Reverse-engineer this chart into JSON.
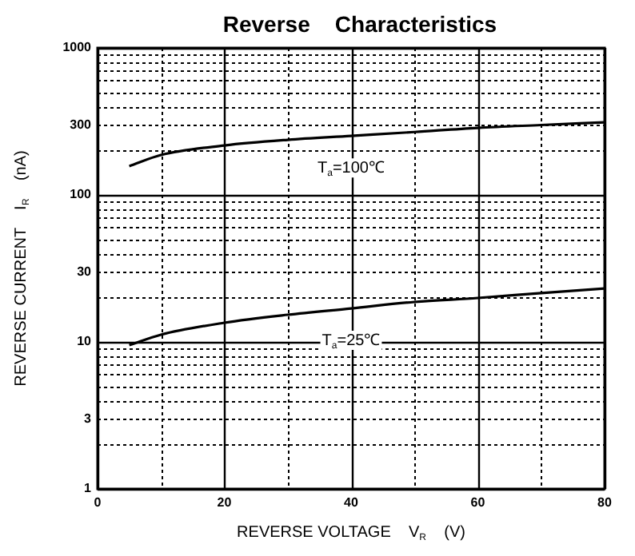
{
  "chart_data": {
    "type": "line",
    "title": "Reverse    Characteristics",
    "xlabel": "REVERSE VOLTAGE    V$_{R}$    (V)",
    "ylabel": "REVERSE CURRENT    I$_{R}$    (nA)",
    "x": [
      5,
      10,
      20,
      30,
      40,
      50,
      60,
      70,
      80
    ],
    "series": [
      {
        "name": "T$_{a}$=100℃",
        "color": "#000000",
        "values": [
          157,
          187,
          217,
          237,
          252,
          268,
          286,
          299,
          312
        ]
      },
      {
        "name": "T$_{a}$=25℃",
        "color": "#000000",
        "values": [
          9.5,
          11.2,
          13.5,
          15.3,
          16.9,
          18.7,
          19.9,
          21.5,
          23.1
        ]
      }
    ],
    "log": "y",
    "xlim": [
      0,
      80
    ],
    "ylim": [
      1,
      1000
    ],
    "xticks": [
      0,
      {
        "value": 10,
        "label": null
      },
      20,
      {
        "value": 30,
        "label": null
      },
      40,
      {
        "value": 50,
        "label": null
      },
      60,
      {
        "value": 70,
        "label": null
      },
      80
    ],
    "yticks": [
      1,
      {
        "value": 2,
        "label": null
      },
      3,
      {
        "value": 4,
        "label": null
      },
      {
        "value": 5,
        "label": null
      },
      {
        "value": 6,
        "label": null
      },
      {
        "value": 7,
        "label": null
      },
      {
        "value": 8,
        "label": null
      },
      {
        "value": 9,
        "label": null
      },
      10,
      {
        "value": 20,
        "label": null
      },
      30,
      {
        "value": 40,
        "label": null
      },
      {
        "value": 50,
        "label": null
      },
      {
        "value": 60,
        "label": null
      },
      {
        "value": 70,
        "label": null
      },
      {
        "value": 80,
        "label": null
      },
      {
        "value": 90,
        "label": null
      },
      100,
      {
        "value": 200,
        "label": null
      },
      300,
      {
        "value": 400,
        "label": null
      },
      {
        "value": 500,
        "label": null
      },
      {
        "value": 600,
        "label": null
      },
      {
        "value": 700,
        "label": null
      },
      {
        "value": 800,
        "label": null
      },
      {
        "value": 900,
        "label": null
      },
      1000
    ],
    "grid": true,
    "legend": false,
    "marker": "none",
    "line_style": "solid"
  }
}
